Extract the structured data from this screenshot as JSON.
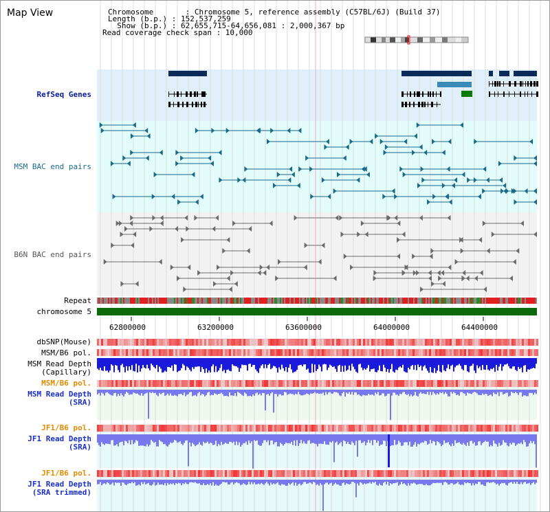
{
  "window": {
    "title": "Map View"
  },
  "header": {
    "chromosome_line": "Chromosome       : Chromosome 5, reference assembly (C57BL/6J) (Build 37)",
    "length_line": "Length (b.p.) : 152,537,259",
    "show_line": "  Show (b.p.) : 62,655,715-64,656,081 : 2,000,367 bp",
    "coverage_line": "Read coverage check span : 10,000"
  },
  "tracks": {
    "refseq": "RefSeq Genes",
    "msm_bac": "MSM BAC end pairs",
    "b6n_bac": "B6N BAC end pairs",
    "repeat": "Repeat",
    "chromosome": "chromosome 5",
    "dbsnp": "dbSNP(Mouse)",
    "msm_b6_pol": "MSM/B6 pol.",
    "msm_depth_cap_1": "MSM Read Depth",
    "msm_depth_cap_2": "(Capillary)",
    "msm_b6_pol_2": "MSM/B6 pol.",
    "msm_depth_sra_1": "MSM Read Depth",
    "msm_depth_sra_2": "(SRA)",
    "jf1_b6_pol": "JF1/B6 pol.",
    "jf1_depth_sra_1": "JF1 Read Depth",
    "jf1_depth_sra_2": "(SRA)",
    "jf1_b6_pol_2": "JF1/B6 pol.",
    "jf1_depth_trim_1": "JF1 Read Depth",
    "jf1_depth_trim_2": "(SRA trimmed)"
  },
  "axis": {
    "ticks": [
      "62800000",
      "63200000",
      "63600000",
      "64000000",
      "64400000"
    ]
  },
  "colors": {
    "refseq_bg": "#dff0fb",
    "msm_bac_bg": "#e2fbfb",
    "b6n_bac_bg": "#f2f2f2",
    "gene": "#0b2a5a",
    "msm_pair": "#1a6a8a",
    "b6n_pair": "#6a6a6a",
    "chromosome_bar": "#0a6a0a",
    "polymorphism": "#ef3030",
    "depth_capillary": "#1a1adc",
    "depth_sra": "#7777ee"
  }
}
